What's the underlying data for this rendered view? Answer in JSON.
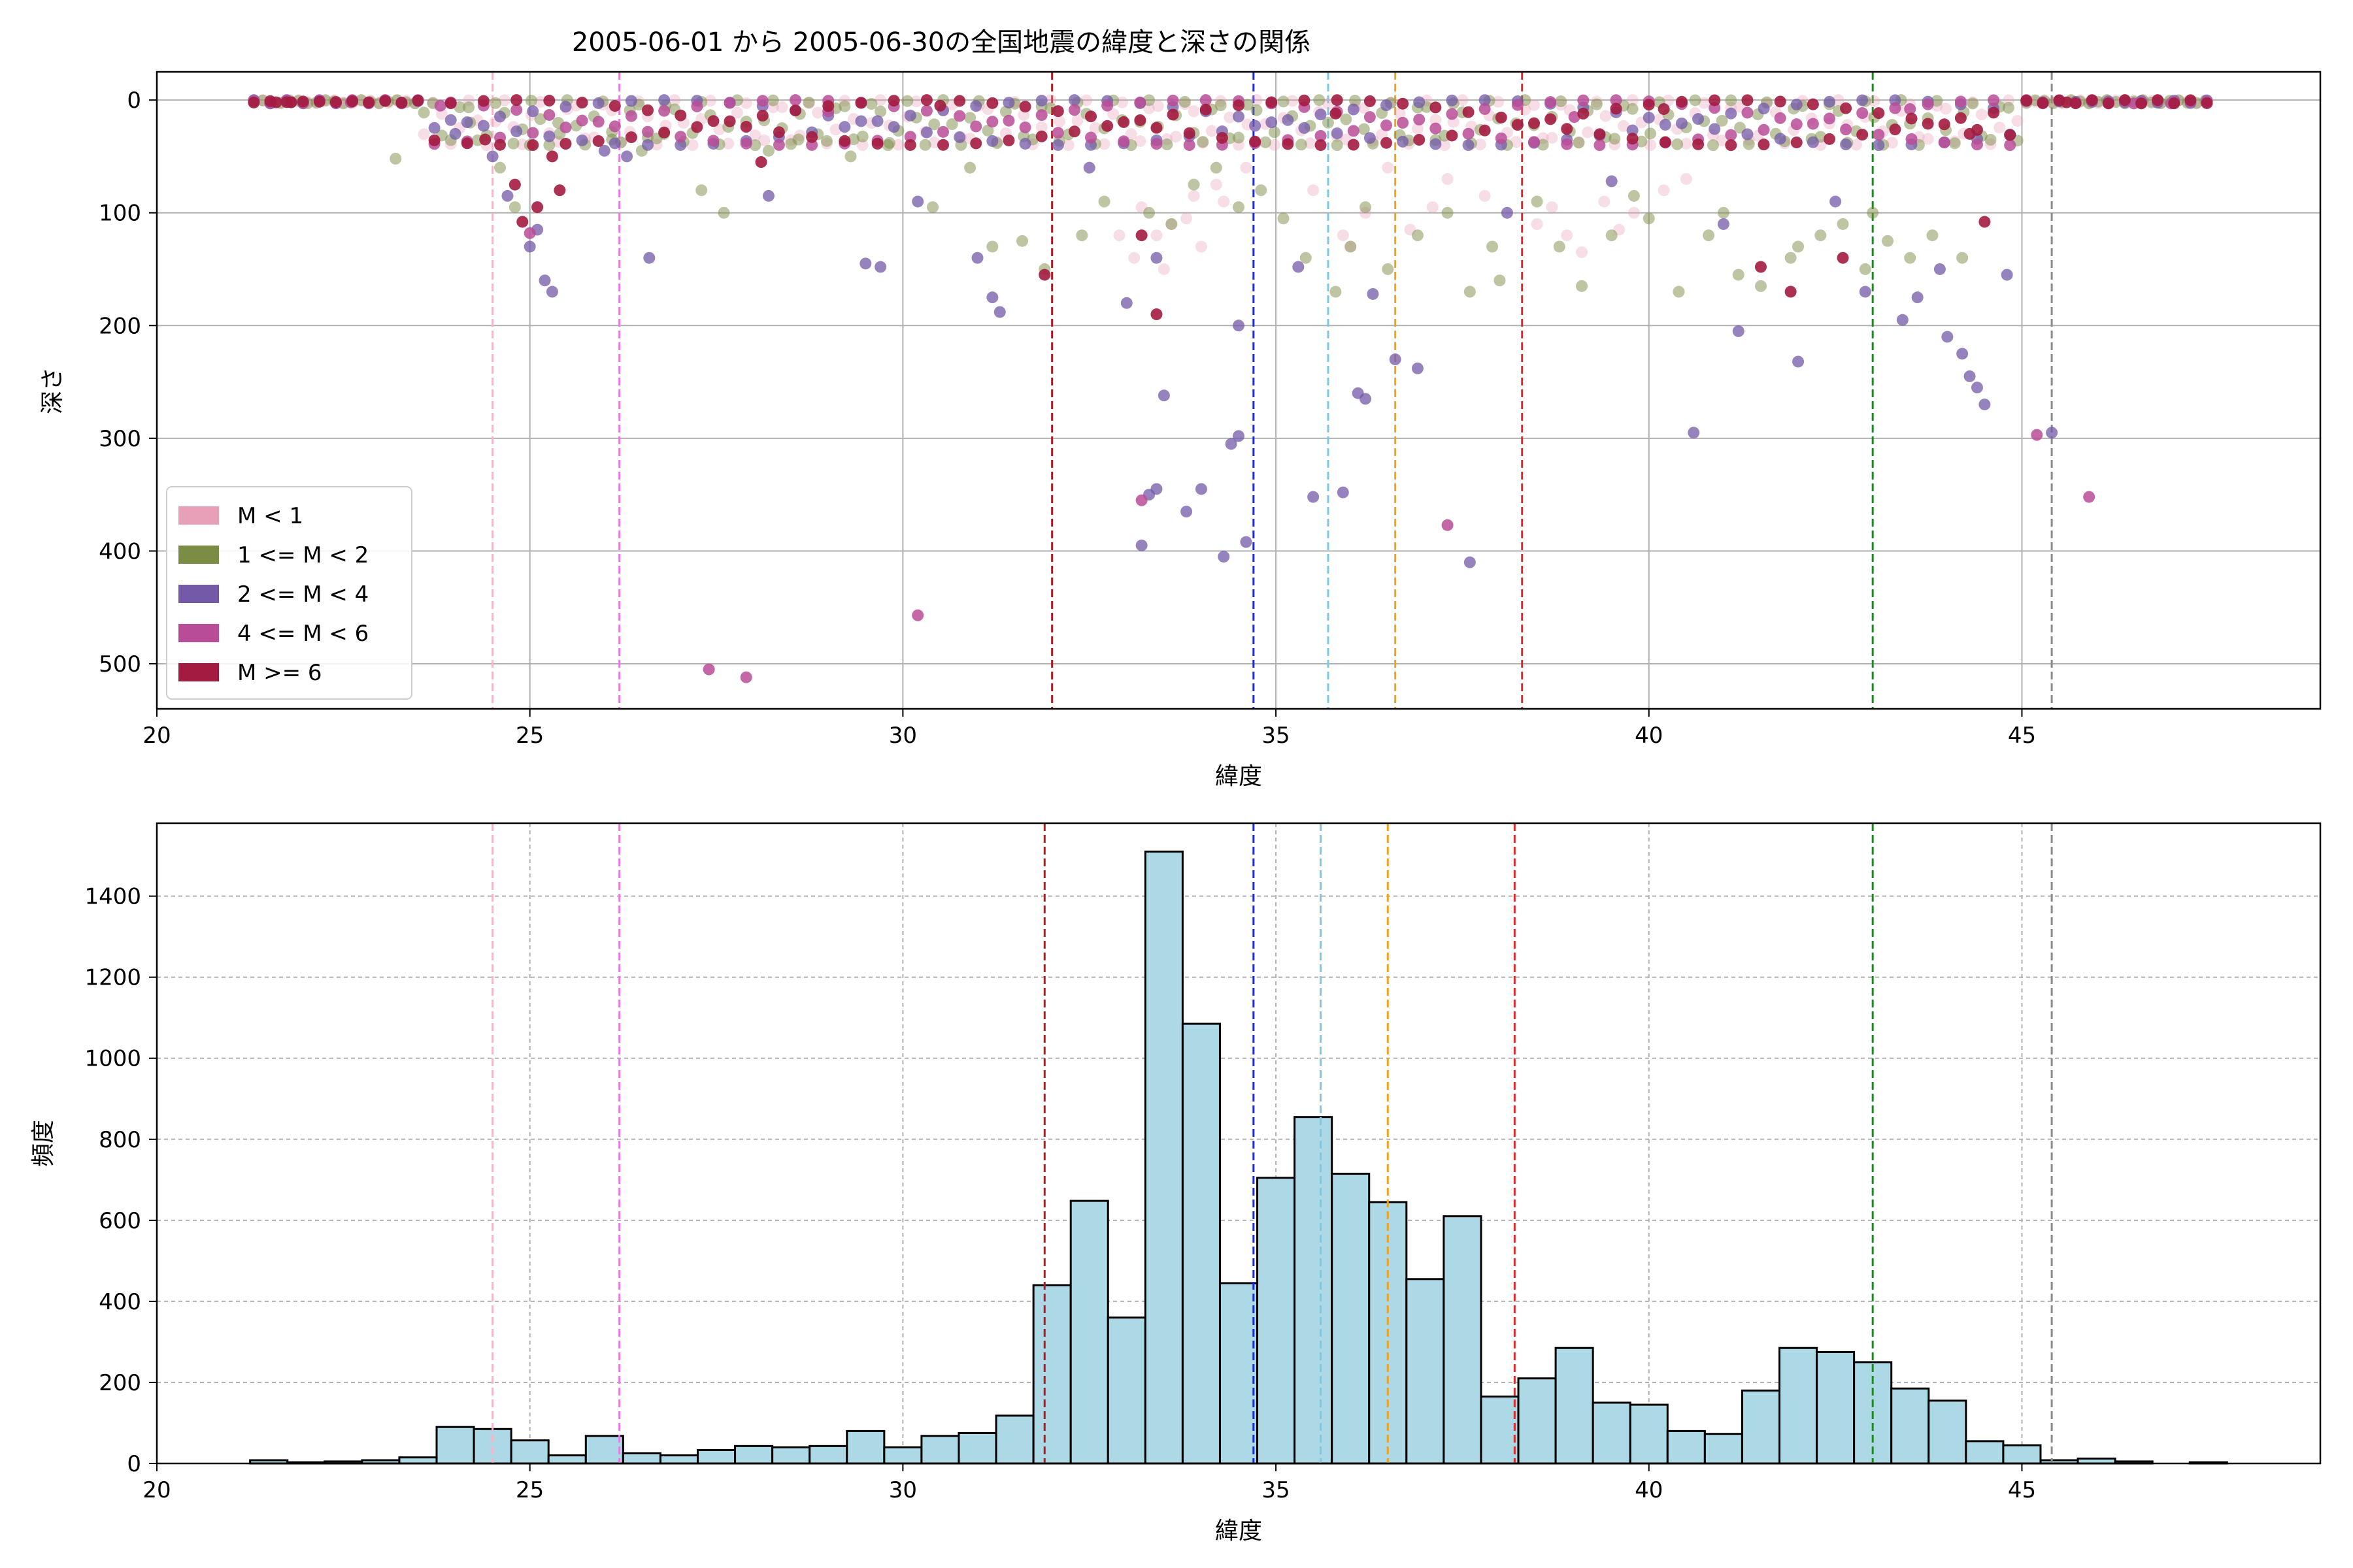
{
  "chart_data": [
    {
      "type": "scatter",
      "title": "2005-06-01 から 2005-06-30の全国地震の緯度と深さの関係",
      "xlabel": "緯度",
      "ylabel": "深さ",
      "xlim": [
        20,
        49
      ],
      "ylim": [
        540,
        -25
      ],
      "y_inverted": true,
      "xticks": [
        20,
        25,
        30,
        35,
        40,
        45
      ],
      "yticks": [
        0,
        100,
        200,
        300,
        400,
        500
      ],
      "grid": true,
      "legend_position": "lower-left",
      "legend": [
        {
          "label": "M < 1",
          "color": "#e8a0b8"
        },
        {
          "label": "1 <= M < 2",
          "color": "#7b8c45"
        },
        {
          "label": "2 <= M < 4",
          "color": "#7359a8"
        },
        {
          "label": "4 <= M < 6",
          "color": "#b84c98"
        },
        {
          "label": "M >= 6",
          "color": "#a31b40"
        }
      ],
      "series": [
        {
          "name": "M < 1",
          "color": "#e8a0b8",
          "opacity": 0.35,
          "points": [
            [
              33.2,
              95
            ],
            [
              33.6,
              110
            ],
            [
              34.0,
              130
            ],
            [
              33.4,
              120
            ],
            [
              33.8,
              105
            ],
            [
              34.3,
              90
            ],
            [
              35.5,
              80
            ],
            [
              36.2,
              100
            ],
            [
              36.8,
              115
            ],
            [
              37.3,
              70
            ],
            [
              38.5,
              110
            ],
            [
              38.9,
              120
            ],
            [
              39.4,
              90
            ],
            [
              39.8,
              100
            ],
            [
              40.2,
              80
            ],
            [
              33.1,
              140
            ],
            [
              32.9,
              120
            ],
            [
              33.5,
              150
            ],
            [
              34.6,
              60
            ],
            [
              36.5,
              60
            ],
            [
              37.8,
              85
            ],
            [
              39.1,
              135
            ],
            [
              38.7,
              95
            ],
            [
              35.9,
              120
            ],
            [
              36.0,
              130
            ],
            [
              34.2,
              75
            ],
            [
              33.9,
              85
            ],
            [
              37.1,
              95
            ],
            [
              39.6,
              115
            ],
            [
              40.5,
              70
            ]
          ]
        },
        {
          "name": "1 <= M < 2",
          "color": "#7b8c45",
          "opacity": 0.5,
          "points": [
            [
              24.2,
              20
            ],
            [
              24.6,
              60
            ],
            [
              25.0,
              40
            ],
            [
              25.4,
              30
            ],
            [
              26.1,
              35
            ],
            [
              26.5,
              45
            ],
            [
              27.3,
              80
            ],
            [
              27.6,
              100
            ],
            [
              28.2,
              45
            ],
            [
              28.6,
              35
            ],
            [
              29.3,
              50
            ],
            [
              29.8,
              40
            ],
            [
              30.4,
              95
            ],
            [
              30.9,
              60
            ],
            [
              31.2,
              130
            ],
            [
              31.6,
              125
            ],
            [
              31.9,
              150
            ],
            [
              32.4,
              120
            ],
            [
              32.7,
              90
            ],
            [
              33.3,
              100
            ],
            [
              33.9,
              75
            ],
            [
              34.2,
              60
            ],
            [
              34.8,
              80
            ],
            [
              35.1,
              105
            ],
            [
              35.4,
              140
            ],
            [
              35.8,
              170
            ],
            [
              36.0,
              130
            ],
            [
              36.5,
              150
            ],
            [
              36.9,
              120
            ],
            [
              37.3,
              100
            ],
            [
              37.6,
              170
            ],
            [
              38.0,
              160
            ],
            [
              38.5,
              90
            ],
            [
              38.8,
              130
            ],
            [
              39.1,
              165
            ],
            [
              39.5,
              120
            ],
            [
              40.0,
              105
            ],
            [
              40.4,
              170
            ],
            [
              40.8,
              120
            ],
            [
              41.2,
              155
            ],
            [
              41.5,
              165
            ],
            [
              41.9,
              140
            ],
            [
              42.3,
              120
            ],
            [
              42.6,
              110
            ],
            [
              42.9,
              150
            ],
            [
              43.2,
              125
            ],
            [
              43.5,
              140
            ],
            [
              43.8,
              120
            ],
            [
              44.2,
              140
            ],
            [
              23.2,
              52
            ],
            [
              24.8,
              95
            ],
            [
              26.8,
              30
            ],
            [
              33.6,
              110
            ],
            [
              34.5,
              95
            ],
            [
              36.2,
              95
            ],
            [
              37.9,
              130
            ],
            [
              39.8,
              85
            ],
            [
              41.0,
              100
            ],
            [
              42.0,
              130
            ],
            [
              43.0,
              100
            ]
          ]
        },
        {
          "name": "2 <= M < 4",
          "color": "#7359a8",
          "opacity": 0.75,
          "points": [
            [
              24.0,
              30
            ],
            [
              24.5,
              50
            ],
            [
              24.7,
              85
            ],
            [
              25.0,
              130
            ],
            [
              25.1,
              115
            ],
            [
              25.2,
              160
            ],
            [
              25.3,
              170
            ],
            [
              26.0,
              45
            ],
            [
              26.3,
              50
            ],
            [
              26.6,
              140
            ],
            [
              28.2,
              85
            ],
            [
              29.5,
              145
            ],
            [
              29.7,
              148
            ],
            [
              30.2,
              90
            ],
            [
              31.0,
              140
            ],
            [
              31.2,
              175
            ],
            [
              31.3,
              188
            ],
            [
              32.5,
              60
            ],
            [
              33.0,
              180
            ],
            [
              33.4,
              140
            ],
            [
              33.2,
              395
            ],
            [
              33.3,
              350
            ],
            [
              33.4,
              345
            ],
            [
              33.5,
              262
            ],
            [
              33.8,
              365
            ],
            [
              34.0,
              345
            ],
            [
              34.3,
              405
            ],
            [
              34.4,
              305
            ],
            [
              34.6,
              392
            ],
            [
              34.5,
              298
            ],
            [
              34.5,
              200
            ],
            [
              35.3,
              148
            ],
            [
              35.5,
              352
            ],
            [
              35.9,
              348
            ],
            [
              36.1,
              260
            ],
            [
              36.2,
              265
            ],
            [
              36.3,
              172
            ],
            [
              36.6,
              230
            ],
            [
              36.9,
              238
            ],
            [
              37.6,
              410
            ],
            [
              38.1,
              100
            ],
            [
              39.5,
              72
            ],
            [
              40.6,
              295
            ],
            [
              41.2,
              205
            ],
            [
              42.0,
              232
            ],
            [
              42.9,
              170
            ],
            [
              43.4,
              195
            ],
            [
              43.6,
              175
            ],
            [
              44.0,
              210
            ],
            [
              44.2,
              225
            ],
            [
              44.3,
              245
            ],
            [
              44.4,
              255
            ],
            [
              44.5,
              270
            ],
            [
              45.4,
              295
            ],
            [
              41.0,
              110
            ],
            [
              42.5,
              90
            ],
            [
              43.9,
              150
            ],
            [
              44.8,
              155
            ]
          ]
        },
        {
          "name": "4 <= M < 6",
          "color": "#b84c98",
          "opacity": 0.85,
          "points": [
            [
              27.4,
              505
            ],
            [
              27.9,
              512
            ],
            [
              30.2,
              457
            ],
            [
              33.2,
              355
            ],
            [
              37.3,
              377
            ],
            [
              45.2,
              297
            ],
            [
              45.9,
              352
            ],
            [
              21.8,
              2
            ],
            [
              22.6,
              2
            ],
            [
              46.5,
              3
            ],
            [
              47.0,
              3
            ],
            [
              25.0,
              118
            ],
            [
              23.8,
              5
            ],
            [
              29.0,
              10
            ],
            [
              39.0,
              15
            ],
            [
              43.5,
              8
            ]
          ]
        },
        {
          "name": "M >= 6",
          "color": "#a31b40",
          "opacity": 0.9,
          "points": [
            [
              24.4,
              35
            ],
            [
              24.9,
              108
            ],
            [
              24.8,
              75
            ],
            [
              25.1,
              95
            ],
            [
              25.3,
              50
            ],
            [
              25.4,
              80
            ],
            [
              28.1,
              55
            ],
            [
              31.9,
              155
            ],
            [
              33.2,
              120
            ],
            [
              33.4,
              190
            ],
            [
              41.5,
              148
            ],
            [
              41.9,
              170
            ],
            [
              42.6,
              140
            ],
            [
              44.3,
              30
            ],
            [
              44.5,
              108
            ],
            [
              45.6,
              2
            ],
            [
              21.6,
              2
            ],
            [
              21.8,
              2
            ],
            [
              30.5,
              5
            ],
            [
              35.8,
              12
            ],
            [
              40.2,
              8
            ]
          ]
        }
      ],
      "vlines": [
        {
          "x": 24.5,
          "color": "#f5b6c8"
        },
        {
          "x": 26.2,
          "color": "#e87ae6"
        },
        {
          "x": 32.0,
          "color": "#b01c22"
        },
        {
          "x": 34.7,
          "color": "#1d28d8"
        },
        {
          "x": 35.7,
          "color": "#7ec8e6"
        },
        {
          "x": 36.6,
          "color": "#f0a21a"
        },
        {
          "x": 38.3,
          "color": "#e0292b"
        },
        {
          "x": 43.0,
          "color": "#1e8a1e"
        },
        {
          "x": 45.4,
          "color": "#8a8a8a"
        }
      ]
    },
    {
      "type": "bar",
      "title": "",
      "xlabel": "緯度",
      "ylabel": "頻度",
      "xlim": [
        20,
        49
      ],
      "ylim": [
        0,
        1580
      ],
      "xticks": [
        20,
        25,
        30,
        35,
        40,
        45
      ],
      "yticks": [
        0,
        200,
        400,
        600,
        800,
        1000,
        1200,
        1400
      ],
      "grid": true,
      "bin_start": 21.25,
      "bin_width": 0.5,
      "bar_color": "#add8e6",
      "edge_color": "#000000",
      "values": [
        8,
        3,
        5,
        8,
        15,
        90,
        85,
        57,
        20,
        68,
        25,
        20,
        33,
        43,
        40,
        43,
        80,
        40,
        68,
        75,
        118,
        440,
        648,
        360,
        1510,
        1085,
        445,
        705,
        855,
        715,
        645,
        455,
        610,
        165,
        210,
        285,
        150,
        145,
        80,
        73,
        180,
        285,
        275,
        250,
        185,
        155,
        55,
        45,
        8,
        12,
        5,
        0,
        3
      ],
      "vlines": [
        {
          "x": 24.5,
          "color": "#f5b6c8"
        },
        {
          "x": 26.2,
          "color": "#e87ae6"
        },
        {
          "x": 31.9,
          "color": "#b01c22"
        },
        {
          "x": 34.7,
          "color": "#1d28d8"
        },
        {
          "x": 35.6,
          "color": "#7ec8e6"
        },
        {
          "x": 36.5,
          "color": "#f0a21a"
        },
        {
          "x": 38.2,
          "color": "#e0292b"
        },
        {
          "x": 43.0,
          "color": "#1e8a1e"
        },
        {
          "x": 45.4,
          "color": "#8a8a8a"
        }
      ]
    }
  ]
}
